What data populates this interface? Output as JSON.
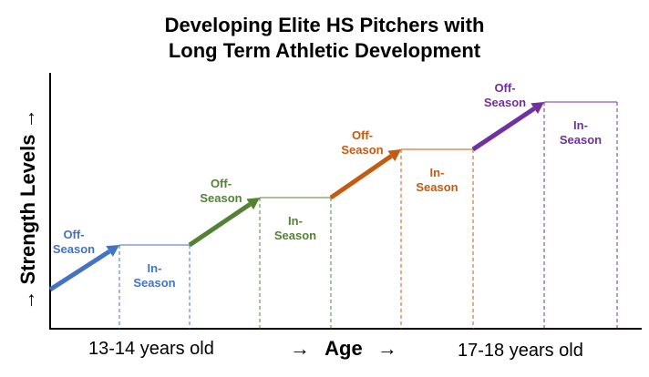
{
  "title_line1": "Developing Elite HS Pitchers with",
  "title_line2": "Long Term Athletic Development",
  "y_axis_label": "→ Strength Levels →",
  "x_axis_label": "Age",
  "x_arrow_left": "→",
  "x_arrow_right": "→",
  "start_label": "13-14 years old",
  "end_label": "17-18 years old",
  "stages": [
    {
      "color": "#4472C4",
      "off1": "Off-",
      "off2": "Season",
      "in1": "In-",
      "in2": "Season"
    },
    {
      "color": "#548235",
      "off1": "Off-",
      "off2": "Season",
      "in1": "In-",
      "in2": "Season"
    },
    {
      "color": "#C55A11",
      "off1": "Off-",
      "off2": "Season",
      "in1": "In-",
      "in2": "Season"
    },
    {
      "color": "#7030A0",
      "off1": "Off-",
      "off2": "Season",
      "in1": "In-",
      "in2": "Season"
    }
  ]
}
